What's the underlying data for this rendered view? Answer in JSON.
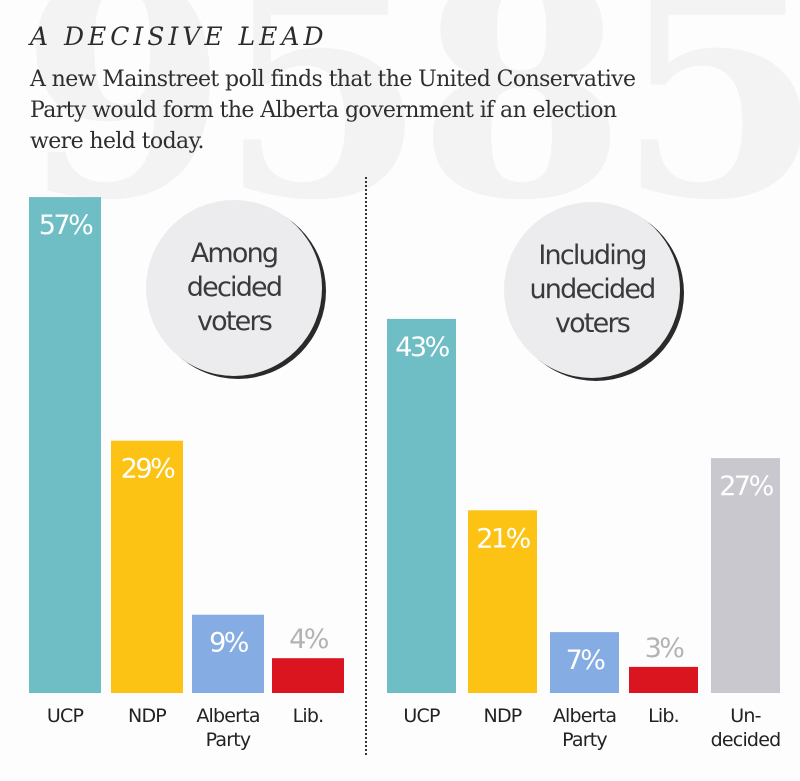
{
  "header": {
    "title": "A DECISIVE LEAD",
    "subtitle_lines": [
      "A new Mainstreet poll finds that the United Conservative",
      "Party would form the Alberta government if an election",
      "were held today."
    ],
    "watermark": "9585"
  },
  "colors": {
    "UCP": "#6fbdc5",
    "NDP": "#fdc314",
    "Alberta Party": "#86ade3",
    "Lib.": "#da1520",
    "Undecided": "#c8c8ce",
    "value_label_inside": "#ffffff",
    "value_label_outside": "#b3b3b3",
    "circle_fill": "#ececee",
    "circle_shadow": "#2a2a2a"
  },
  "chart_data": [
    {
      "type": "bar",
      "title": "Among decided voters",
      "title_lines": [
        "Among",
        "decided",
        "voters"
      ],
      "categories": [
        "UCP",
        "NDP",
        "Alberta Party",
        "Lib."
      ],
      "category_lines": [
        [
          "UCP"
        ],
        [
          "NDP"
        ],
        [
          "Alberta",
          "Party"
        ],
        [
          "Lib."
        ]
      ],
      "values": [
        57,
        29,
        9,
        4
      ],
      "value_labels": [
        "57%",
        "29%",
        "9%",
        "4%"
      ],
      "unit": "%",
      "xlabel": "",
      "ylabel": "",
      "ylim": [
        0,
        60
      ],
      "grid": false,
      "legend": "none"
    },
    {
      "type": "bar",
      "title": "Including undecided voters",
      "title_lines": [
        "Including",
        "undecided",
        "voters"
      ],
      "categories": [
        "UCP",
        "NDP",
        "Alberta Party",
        "Lib.",
        "Undecided"
      ],
      "category_lines": [
        [
          "UCP"
        ],
        [
          "NDP"
        ],
        [
          "Alberta",
          "Party"
        ],
        [
          "Lib."
        ],
        [
          "Un-",
          "decided"
        ]
      ],
      "values": [
        43,
        21,
        7,
        3,
        27
      ],
      "value_labels": [
        "43%",
        "21%",
        "7%",
        "3%",
        "27%"
      ],
      "unit": "%",
      "xlabel": "",
      "ylabel": "",
      "ylim": [
        0,
        60
      ],
      "grid": false,
      "legend": "none"
    }
  ]
}
